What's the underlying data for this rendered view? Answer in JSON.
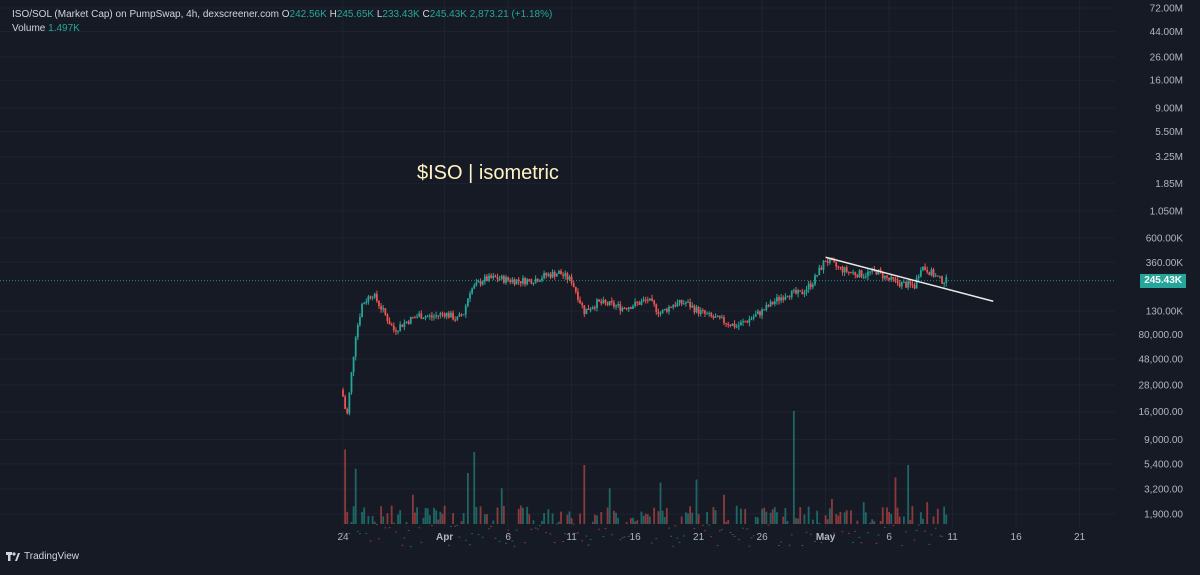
{
  "legend": {
    "symbol": "ISO/SOL (Market Cap) on PumpSwap, 4h, dexscreener.com",
    "o_label": "O",
    "o_value": "242.56K",
    "h_label": "H",
    "h_value": "245.65K",
    "l_label": "L",
    "l_value": "233.43K",
    "c_label": "C",
    "c_value": "245.43K",
    "change": "2,873.21 (+1.18%)",
    "volume_label": "Volume",
    "volume_value": "1.497K"
  },
  "annotation": "$ISO | isometric",
  "price_badge": "245.43K",
  "brand": "TradingView",
  "colors": {
    "background": "#161a25",
    "up": "#26a69a",
    "down": "#ef5350",
    "trendline": "#ffffff",
    "annotation": "#fff3c4"
  },
  "chart_data": {
    "type": "candlestick",
    "title": "",
    "scale": "log",
    "y_tick_labels": [
      "72.00M",
      "44.00M",
      "26.00M",
      "16.00M",
      "9.00M",
      "5.50M",
      "3.25M",
      "1.85M",
      "1.050M",
      "600.00K",
      "360.00K",
      "130.00K",
      "80,000.00",
      "48,000.00",
      "28,000.00",
      "16,000.00",
      "9,000.00",
      "5,400.00",
      "3,200.00",
      "1,900.00"
    ],
    "y_tick_values": [
      72000000,
      44000000,
      26000000,
      16000000,
      9000000,
      5500000,
      3250000,
      1850000,
      1050000,
      600000,
      360000,
      130000,
      80000,
      48000,
      28000,
      16000,
      9000,
      5400,
      3200,
      1900
    ],
    "x_tick_labels": [
      "24",
      "Apr",
      "6",
      "11",
      "16",
      "21",
      "26",
      "May",
      "6",
      "11",
      "16",
      "21"
    ],
    "x_tick_day_index": [
      0,
      8,
      13,
      18,
      23,
      28,
      33,
      38,
      43,
      48,
      53,
      58
    ],
    "first_candle_day": 0,
    "last_candle_day": 47.5,
    "candles_per_day": 6,
    "close_path": [
      {
        "day": 0.0,
        "v": 22000
      },
      {
        "day": 0.3,
        "v": 14000
      },
      {
        "day": 0.6,
        "v": 30000
      },
      {
        "day": 1.0,
        "v": 80000
      },
      {
        "day": 1.5,
        "v": 150000
      },
      {
        "day": 2.3,
        "v": 190000
      },
      {
        "day": 3.0,
        "v": 140000
      },
      {
        "day": 4.0,
        "v": 88000
      },
      {
        "day": 5.0,
        "v": 105000
      },
      {
        "day": 6.0,
        "v": 120000
      },
      {
        "day": 7.0,
        "v": 115000
      },
      {
        "day": 8.0,
        "v": 125000
      },
      {
        "day": 9.0,
        "v": 110000
      },
      {
        "day": 9.5,
        "v": 125000
      },
      {
        "day": 10.0,
        "v": 200000
      },
      {
        "day": 11.0,
        "v": 250000
      },
      {
        "day": 12.0,
        "v": 260000
      },
      {
        "day": 13.0,
        "v": 250000
      },
      {
        "day": 14.0,
        "v": 245000
      },
      {
        "day": 15.0,
        "v": 250000
      },
      {
        "day": 16.0,
        "v": 275000
      },
      {
        "day": 17.0,
        "v": 290000
      },
      {
        "day": 18.0,
        "v": 245000
      },
      {
        "day": 19.0,
        "v": 130000
      },
      {
        "day": 20.0,
        "v": 155000
      },
      {
        "day": 21.0,
        "v": 150000
      },
      {
        "day": 22.0,
        "v": 140000
      },
      {
        "day": 23.0,
        "v": 150000
      },
      {
        "day": 24.0,
        "v": 165000
      },
      {
        "day": 25.0,
        "v": 125000
      },
      {
        "day": 26.0,
        "v": 150000
      },
      {
        "day": 27.0,
        "v": 155000
      },
      {
        "day": 28.0,
        "v": 130000
      },
      {
        "day": 29.0,
        "v": 115000
      },
      {
        "day": 30.0,
        "v": 105000
      },
      {
        "day": 31.0,
        "v": 95000
      },
      {
        "day": 32.0,
        "v": 110000
      },
      {
        "day": 33.0,
        "v": 130000
      },
      {
        "day": 34.0,
        "v": 160000
      },
      {
        "day": 35.0,
        "v": 190000
      },
      {
        "day": 36.0,
        "v": 185000
      },
      {
        "day": 37.0,
        "v": 240000
      },
      {
        "day": 38.0,
        "v": 380000
      },
      {
        "day": 39.0,
        "v": 320000
      },
      {
        "day": 40.0,
        "v": 290000
      },
      {
        "day": 41.0,
        "v": 280000
      },
      {
        "day": 42.0,
        "v": 300000
      },
      {
        "day": 43.0,
        "v": 250000
      },
      {
        "day": 44.0,
        "v": 230000
      },
      {
        "day": 45.0,
        "v": 220000
      },
      {
        "day": 45.5,
        "v": 330000
      },
      {
        "day": 46.0,
        "v": 310000
      },
      {
        "day": 47.0,
        "v": 250000
      },
      {
        "day": 47.5,
        "v": 245430
      }
    ],
    "volume_spikes": [
      {
        "day": 0.2,
        "v": 9000
      },
      {
        "day": 1.0,
        "v": 6000
      },
      {
        "day": 5.5,
        "v": 3500
      },
      {
        "day": 9.8,
        "v": 5500
      },
      {
        "day": 10.3,
        "v": 8500
      },
      {
        "day": 12.5,
        "v": 4000
      },
      {
        "day": 19.0,
        "v": 6500
      },
      {
        "day": 21.0,
        "v": 4000
      },
      {
        "day": 25.0,
        "v": 4500
      },
      {
        "day": 27.8,
        "v": 4800
      },
      {
        "day": 30.0,
        "v": 3500
      },
      {
        "day": 35.5,
        "v": 20000
      },
      {
        "day": 38.5,
        "v": 3200
      },
      {
        "day": 41.0,
        "v": 3000
      },
      {
        "day": 43.5,
        "v": 5000
      },
      {
        "day": 44.5,
        "v": 6500
      },
      {
        "day": 46.0,
        "v": 3000
      }
    ],
    "trendline": {
      "from_day": 38.0,
      "from_v": 400000,
      "to_day": 51.2,
      "to_v": 160000
    },
    "current_price": 245430
  }
}
